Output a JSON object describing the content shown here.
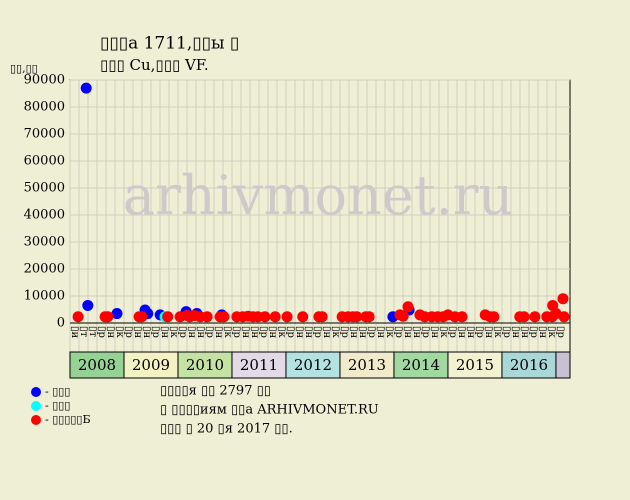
{
  "chart_data": {
    "type": "scatter",
    "title": "▯▯▯а 1711,▯▯ы ▯",
    "subtitle": "▯▯▯ Cu,▯▯▯ VF.",
    "y_label": "▯▯,▯▯",
    "watermark": "arhivmonet.ru",
    "xlim": [
      2008,
      2017.26
    ],
    "ylim": [
      0,
      90000
    ],
    "yticks": [
      0,
      10000,
      20000,
      30000,
      40000,
      50000,
      60000,
      70000,
      80000,
      90000
    ],
    "grid": true,
    "years": [
      "2008",
      "2009",
      "2010",
      "2011",
      "2012",
      "2013",
      "2014",
      "2015",
      "2016"
    ],
    "year_colors": [
      "#96d296",
      "#f2f2c4",
      "#c4e2a4",
      "#e2dae6",
      "#b4e2e2",
      "#f2eacc",
      "#a2d8a2",
      "#f2f2d2",
      "#aad8d8"
    ],
    "month_labels": [
      "▯й",
      "▯т",
      "▯т",
      "▯р",
      "▯н",
      "▯к",
      "▯р",
      "▯н",
      "▯н",
      "▯р",
      "▯н",
      "▯к",
      "▯р",
      "▯н",
      "▯н",
      "▯р",
      "▯н",
      "▯к",
      "▯р",
      "▯н",
      "▯н",
      "▯р",
      "▯н",
      "▯к",
      "▯р",
      "▯н",
      "▯н",
      "▯р",
      "▯н",
      "▯к",
      "▯р",
      "▯н",
      "▯н",
      "▯р",
      "▯н",
      "▯к",
      "▯р",
      "▯н",
      "▯н",
      "▯р",
      "▯н",
      "▯к",
      "▯р",
      "▯н",
      "▯н",
      "▯р",
      "▯н",
      "▯к",
      "▯р",
      "▯н",
      "▯н",
      "▯р",
      "▯н",
      "▯к",
      "▯р"
    ],
    "series": [
      {
        "name": "- ▯▯▯",
        "color": "#0000ff",
        "x": [
          2008.3,
          2008.33,
          2008.87,
          2009.39,
          2009.44,
          2009.67,
          2010.15,
          2010.35,
          2010.81,
          2013.98,
          2014.28
        ],
        "values": [
          87000,
          6500,
          3500,
          4800,
          3500,
          3000,
          4200,
          3500,
          3000,
          2300,
          4800
        ]
      },
      {
        "name": "- ▯▯▯",
        "color": "#00ffff",
        "x": [
          2009.76
        ],
        "values": [
          2300
        ]
      },
      {
        "name": "- ▯▯▯▯▯Б",
        "color": "#ff0000",
        "x": [
          2008.15,
          2008.65,
          2008.7,
          2009.28,
          2009.33,
          2009.81,
          2010.04,
          2010.17,
          2010.22,
          2010.3,
          2010.41,
          2010.54,
          2010.78,
          2010.85,
          2011.09,
          2011.2,
          2011.3,
          2011.39,
          2011.48,
          2011.61,
          2011.8,
          2012.02,
          2012.31,
          2012.61,
          2012.67,
          2013.04,
          2013.15,
          2013.24,
          2013.31,
          2013.48,
          2013.54,
          2014.11,
          2014.17,
          2014.26,
          2014.48,
          2014.57,
          2014.7,
          2014.81,
          2014.91,
          2015.0,
          2015.13,
          2015.26,
          2015.69,
          2015.78,
          2015.85,
          2016.33,
          2016.41,
          2016.61,
          2016.83,
          2016.93,
          2016.94,
          2017.0,
          2017.13,
          2017.15
        ],
        "values": [
          2300,
          2300,
          2300,
          2300,
          2300,
          2300,
          2300,
          2800,
          2300,
          2800,
          2300,
          2300,
          2300,
          2300,
          2300,
          2300,
          2500,
          2300,
          2300,
          2300,
          2300,
          2300,
          2300,
          2300,
          2300,
          2300,
          2300,
          2300,
          2300,
          2300,
          2300,
          3000,
          2500,
          6000,
          3000,
          2300,
          2300,
          2300,
          2300,
          3000,
          2300,
          2300,
          3000,
          2300,
          2300,
          2300,
          2300,
          2300,
          2300,
          2300,
          6500,
          3500,
          9000,
          2300
        ]
      }
    ],
    "notes": [
      "▯▯▯▯я ▯▯ 2797 ▯▯",
      "▯ ▯▯▯▯иям ▯▯а ARHIVMONET.RU",
      "▯▯▯ ▯ 20 ▯я 2017 ▯▯."
    ]
  }
}
